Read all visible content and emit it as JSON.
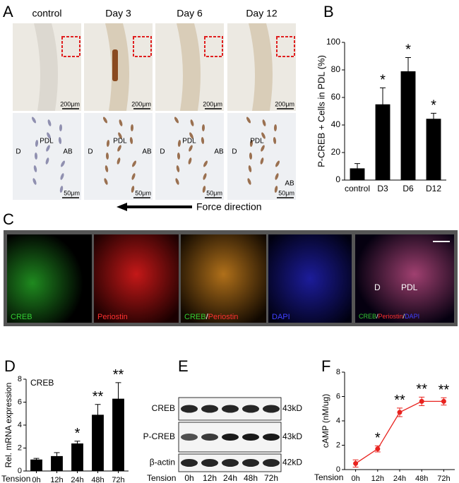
{
  "panel_labels": [
    "A",
    "B",
    "C",
    "D",
    "E",
    "F"
  ],
  "panel_a": {
    "columns": [
      "control",
      "Day 3",
      "Day 6",
      "Day 12"
    ],
    "scale_top": [
      "200μm",
      "200μm",
      "200μm",
      "200μm"
    ],
    "scale_bottom": [
      "50μm",
      "50μm",
      "50μm",
      "50μm"
    ],
    "regions": [
      [
        "D",
        "PDL",
        "AB"
      ],
      [
        "D",
        "PDL",
        "AB"
      ],
      [
        "D",
        "PDL",
        "AB"
      ],
      [
        "D",
        "PDL",
        "AB"
      ]
    ],
    "arrow_label": "Force direction"
  },
  "panel_c": {
    "labels": [
      [
        {
          "text": "CREB",
          "color": "#33cc33"
        }
      ],
      [
        {
          "text": "Periostin",
          "color": "#ff3030"
        }
      ],
      [
        {
          "text": "CREB",
          "color": "#33cc33"
        },
        {
          "text": "/",
          "color": "#ffffff"
        },
        {
          "text": "Periostin",
          "color": "#ff3030"
        }
      ],
      [
        {
          "text": "DAPI",
          "color": "#4040ff"
        }
      ],
      [
        {
          "text": "CREB",
          "color": "#33cc33"
        },
        {
          "text": "/",
          "color": "#ffffff"
        },
        {
          "text": "Periostin",
          "color": "#ff3030"
        },
        {
          "text": "/",
          "color": "#ffffff"
        },
        {
          "text": "DAPI",
          "color": "#4040ff"
        }
      ]
    ],
    "regions": [
      "D",
      "PDL"
    ]
  },
  "panel_e": {
    "rows": [
      "CREB",
      "P-CREB",
      "β-actin"
    ],
    "sizes": [
      "43kD",
      "43kD",
      "42kD"
    ],
    "x_label": "Tension",
    "lanes": [
      "0h",
      "12h",
      "24h",
      "48h",
      "72h"
    ]
  },
  "chart_data": [
    {
      "type": "bar",
      "y_label": "P-CREB + Cells in PDL  (%)",
      "color": "#000000",
      "categories": [
        "control",
        "D3",
        "D6",
        "D12"
      ],
      "values": [
        8.5,
        55,
        79,
        44.5
      ],
      "errors": [
        3.5,
        12,
        10,
        4
      ],
      "significance": [
        null,
        "*",
        "*",
        "*"
      ],
      "ylim": [
        0,
        100
      ],
      "yticks": [
        0,
        20,
        40,
        60,
        80,
        100
      ]
    },
    {
      "type": "bar",
      "label": "CREB",
      "y_label": "Rel. mRNA expression",
      "x_label": "Tension",
      "color": "#000000",
      "categories": [
        "0h",
        "12h",
        "24h",
        "48h",
        "72h"
      ],
      "values": [
        1,
        1.3,
        2.4,
        4.9,
        6.3
      ],
      "errors": [
        0.1,
        0.3,
        0.2,
        0.9,
        1.4
      ],
      "significance": [
        null,
        null,
        "*",
        "**",
        "**"
      ],
      "ylim": [
        0,
        8
      ],
      "yticks": [
        0,
        2,
        4,
        6,
        8
      ]
    },
    {
      "type": "line",
      "y_label": "cAMP (nM/ug)",
      "x_label": "Tension",
      "color": "#e8231f",
      "categories": [
        "0h",
        "12h",
        "24h",
        "48h",
        "72h"
      ],
      "values": [
        0.5,
        1.7,
        4.7,
        5.6,
        5.6
      ],
      "errors": [
        0.3,
        0.25,
        0.35,
        0.35,
        0.3
      ],
      "significance": [
        null,
        "*",
        "**",
        "**",
        "**"
      ],
      "ylim": [
        0,
        8
      ],
      "yticks": [
        0,
        2,
        4,
        6,
        8
      ]
    }
  ]
}
